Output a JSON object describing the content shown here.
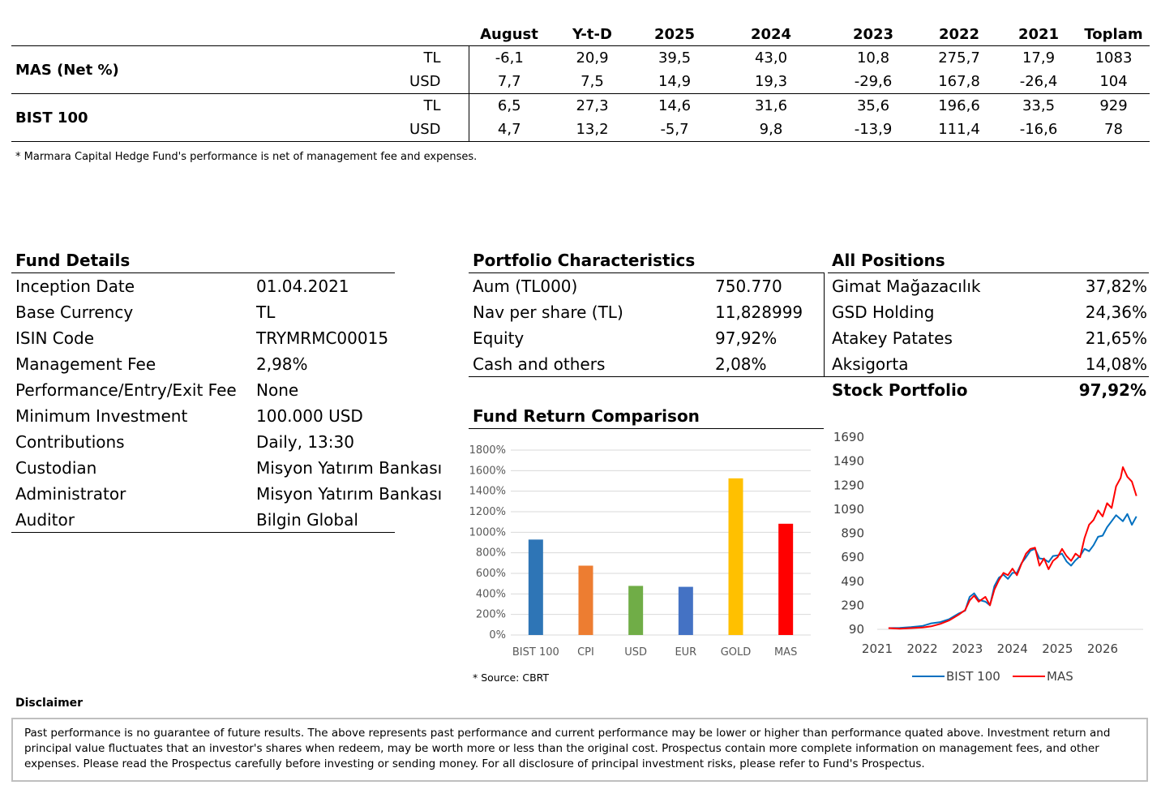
{
  "performance": {
    "columns": [
      "August",
      "Y-t-D",
      "2025",
      "2024",
      "2023",
      "2022",
      "2021",
      "Toplam"
    ],
    "groups": [
      {
        "name": "MAS (Net %)",
        "rows": [
          {
            "ccy": "TL",
            "values": [
              "-6,1",
              "20,9",
              "39,5",
              "43,0",
              "10,8",
              "275,7",
              "17,9",
              "1083"
            ]
          },
          {
            "ccy": "USD",
            "values": [
              "7,7",
              "7,5",
              "14,9",
              "19,3",
              "-29,6",
              "167,8",
              "-26,4",
              "104"
            ]
          }
        ]
      },
      {
        "name": "BIST 100",
        "rows": [
          {
            "ccy": "TL",
            "values": [
              "6,5",
              "27,3",
              "14,6",
              "31,6",
              "35,6",
              "196,6",
              "33,5",
              "929"
            ]
          },
          {
            "ccy": "USD",
            "values": [
              "4,7",
              "13,2",
              "-5,7",
              "9,8",
              "-13,9",
              "111,4",
              "-16,6",
              "78"
            ]
          }
        ]
      }
    ],
    "footnote": "* Marmara Capital Hedge Fund's performance is net of management fee and expenses."
  },
  "fund_details": {
    "title": "Fund Details",
    "items": [
      {
        "label": "Inception Date",
        "value": "01.04.2021"
      },
      {
        "label": "Base Currency",
        "value": "TL"
      },
      {
        "label": "ISIN Code",
        "value": "TRYMRMC00015"
      },
      {
        "label": "Management Fee",
        "value": "2,98%"
      },
      {
        "label": "Performance/Entry/Exit Fee",
        "value": "None"
      },
      {
        "label": "Minimum Investment",
        "value": "100.000 USD"
      },
      {
        "label": "Contributions",
        "value": "Daily, 13:30"
      },
      {
        "label": "Custodian",
        "value": "Misyon Yatırım Bankası"
      },
      {
        "label": "Administrator",
        "value": "Misyon Yatırım Bankası"
      },
      {
        "label": "Auditor",
        "value": "Bilgin Global"
      }
    ]
  },
  "portfolio": {
    "title": "Portfolio Characteristics",
    "items": [
      {
        "label": "Aum (TL000)",
        "value": "750.770"
      },
      {
        "label": "Nav per share (TL)",
        "value": "11,828999"
      },
      {
        "label": "Equity",
        "value": "97,92%"
      },
      {
        "label": "Cash and others",
        "value": "2,08%"
      }
    ]
  },
  "positions": {
    "title": "All Positions",
    "items": [
      {
        "label": "Gimat Mağazacılık",
        "value": "37,82%"
      },
      {
        "label": "GSD Holding",
        "value": "24,36%"
      },
      {
        "label": "Atakey Patates",
        "value": "21,65%"
      },
      {
        "label": "Aksigorta",
        "value": "14,08%"
      }
    ],
    "total_label": "Stock Portfolio",
    "total_value": "97,92%"
  },
  "comparison": {
    "title": "Fund Return Comparison",
    "source": "* Source: CBRT"
  },
  "disclaimer": {
    "title": "Disclaimer",
    "text": "Past performance is no guarantee of future results. The above represents past performance and current performance may be lower or higher than performance quated above. Investment return and principal value fluctuates that an investor's shares when redeem, may be worth more or less than the original cost. Prospectus contain  more complete information on management fees, and other expenses. Please read the Prospectus carefully before investing or sending money. For all disclosure of principal investment risks, please refer to Fund's Prospectus."
  },
  "chart_data": [
    {
      "type": "bar",
      "title": "Fund Return Comparison",
      "categories": [
        "BIST 100",
        "CPI",
        "USD",
        "EUR",
        "GOLD",
        "MAS"
      ],
      "values": [
        929,
        675,
        478,
        469,
        1525,
        1083
      ],
      "colors": [
        "#2e75b6",
        "#ed7d31",
        "#70ad47",
        "#4472c4",
        "#ffc000",
        "#ff0000"
      ],
      "ylim": [
        0,
        1800
      ],
      "yticks": [
        "0%",
        "200%",
        "400%",
        "600%",
        "800%",
        "1000%",
        "1200%",
        "1400%",
        "1600%",
        "1800%"
      ],
      "grid": true
    },
    {
      "type": "line",
      "xlim": [
        2021,
        2026.9
      ],
      "ylim": [
        90,
        1690
      ],
      "xticks": [
        "2021",
        "2022",
        "2023",
        "2024",
        "2025",
        "2026"
      ],
      "yticks": [
        "90",
        "290",
        "490",
        "690",
        "890",
        "1090",
        "1290",
        "1490",
        "1690"
      ],
      "legend": "bottom",
      "series": [
        {
          "name": "BIST 100",
          "color": "#0070c0",
          "points": [
            [
              2021.25,
              100
            ],
            [
              2021.5,
              102
            ],
            [
              2021.75,
              108
            ],
            [
              2022.0,
              118
            ],
            [
              2022.2,
              140
            ],
            [
              2022.4,
              150
            ],
            [
              2022.6,
              175
            ],
            [
              2022.8,
              220
            ],
            [
              2022.95,
              245
            ],
            [
              2023.05,
              360
            ],
            [
              2023.15,
              390
            ],
            [
              2023.25,
              335
            ],
            [
              2023.4,
              320
            ],
            [
              2023.5,
              290
            ],
            [
              2023.6,
              450
            ],
            [
              2023.7,
              520
            ],
            [
              2023.8,
              545
            ],
            [
              2023.9,
              510
            ],
            [
              2024.0,
              560
            ],
            [
              2024.1,
              560
            ],
            [
              2024.2,
              640
            ],
            [
              2024.3,
              690
            ],
            [
              2024.4,
              745
            ],
            [
              2024.5,
              760
            ],
            [
              2024.6,
              680
            ],
            [
              2024.7,
              675
            ],
            [
              2024.8,
              650
            ],
            [
              2024.9,
              700
            ],
            [
              2025.0,
              705
            ],
            [
              2025.1,
              720
            ],
            [
              2025.2,
              655
            ],
            [
              2025.3,
              620
            ],
            [
              2025.4,
              665
            ],
            [
              2025.5,
              700
            ],
            [
              2025.6,
              760
            ],
            [
              2025.7,
              740
            ],
            [
              2025.8,
              790
            ],
            [
              2025.9,
              860
            ],
            [
              2026.0,
              870
            ],
            [
              2026.1,
              940
            ],
            [
              2026.2,
              990
            ],
            [
              2026.3,
              1040
            ],
            [
              2026.45,
              990
            ],
            [
              2026.55,
              1050
            ],
            [
              2026.65,
              960
            ],
            [
              2026.75,
              1030
            ]
          ]
        },
        {
          "name": "MAS",
          "color": "#ff0000",
          "points": [
            [
              2021.25,
              100
            ],
            [
              2021.5,
              95
            ],
            [
              2021.75,
              100
            ],
            [
              2022.0,
              105
            ],
            [
              2022.2,
              115
            ],
            [
              2022.4,
              135
            ],
            [
              2022.6,
              165
            ],
            [
              2022.8,
              210
            ],
            [
              2022.95,
              250
            ],
            [
              2023.05,
              330
            ],
            [
              2023.15,
              370
            ],
            [
              2023.25,
              320
            ],
            [
              2023.4,
              360
            ],
            [
              2023.5,
              290
            ],
            [
              2023.6,
              420
            ],
            [
              2023.7,
              500
            ],
            [
              2023.8,
              560
            ],
            [
              2023.9,
              540
            ],
            [
              2024.0,
              595
            ],
            [
              2024.1,
              540
            ],
            [
              2024.2,
              635
            ],
            [
              2024.3,
              720
            ],
            [
              2024.4,
              760
            ],
            [
              2024.5,
              770
            ],
            [
              2024.6,
              620
            ],
            [
              2024.7,
              680
            ],
            [
              2024.8,
              590
            ],
            [
              2024.9,
              660
            ],
            [
              2025.0,
              690
            ],
            [
              2025.1,
              760
            ],
            [
              2025.2,
              700
            ],
            [
              2025.3,
              660
            ],
            [
              2025.4,
              720
            ],
            [
              2025.5,
              690
            ],
            [
              2025.6,
              850
            ],
            [
              2025.7,
              960
            ],
            [
              2025.8,
              1000
            ],
            [
              2025.9,
              1080
            ],
            [
              2026.0,
              1030
            ],
            [
              2026.1,
              1140
            ],
            [
              2026.2,
              1100
            ],
            [
              2026.3,
              1280
            ],
            [
              2026.4,
              1350
            ],
            [
              2026.45,
              1440
            ],
            [
              2026.55,
              1360
            ],
            [
              2026.65,
              1320
            ],
            [
              2026.75,
              1200
            ]
          ]
        }
      ]
    }
  ]
}
